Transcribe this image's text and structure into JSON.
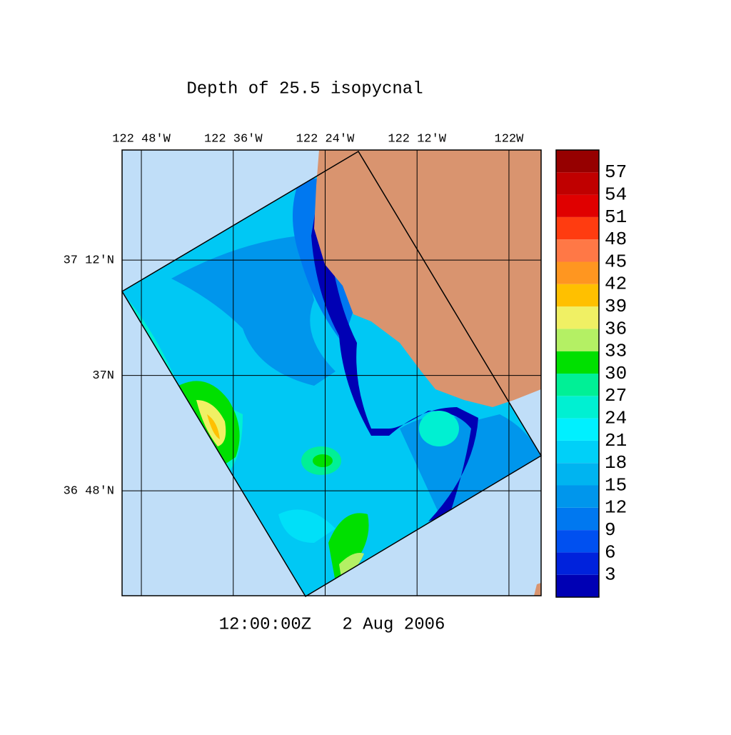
{
  "chart_data": {
    "type": "map",
    "title": "Depth of 25.5 isopycnal",
    "footer": "12:00:00Z   2 Aug 2006",
    "xlim": [
      -122.842,
      -121.93
    ],
    "ylim": [
      36.618,
      37.391
    ],
    "xticks": [
      {
        "value": -122.8,
        "label": "122 48'W"
      },
      {
        "value": -122.6,
        "label": "122 36'W"
      },
      {
        "value": -122.4,
        "label": "122 24'W"
      },
      {
        "value": -122.2,
        "label": "122 12'W"
      },
      {
        "value": -122.0,
        "label": "122W"
      }
    ],
    "yticks": [
      {
        "value": 37.2,
        "label": "37 12'N"
      },
      {
        "value": 37.0,
        "label": "37N"
      },
      {
        "value": 36.8,
        "label": "36 48'N"
      }
    ],
    "grid": true,
    "colorbar": {
      "lim": [
        0,
        60
      ],
      "ticks": [
        3,
        6,
        9,
        12,
        15,
        18,
        21,
        24,
        27,
        30,
        33,
        36,
        39,
        42,
        45,
        48,
        51,
        54,
        57
      ],
      "colors": [
        "#0000b4",
        "#0022dc",
        "#0050f0",
        "#0078f0",
        "#0096ec",
        "#00b4f0",
        "#00d0f8",
        "#00f0ff",
        "#00f0d2",
        "#00f096",
        "#00e000",
        "#b4f064",
        "#f0f064",
        "#ffc000",
        "#ff9620",
        "#ff7846",
        "#ff3c10",
        "#e00000",
        "#c00000",
        "#960000"
      ]
    }
  }
}
